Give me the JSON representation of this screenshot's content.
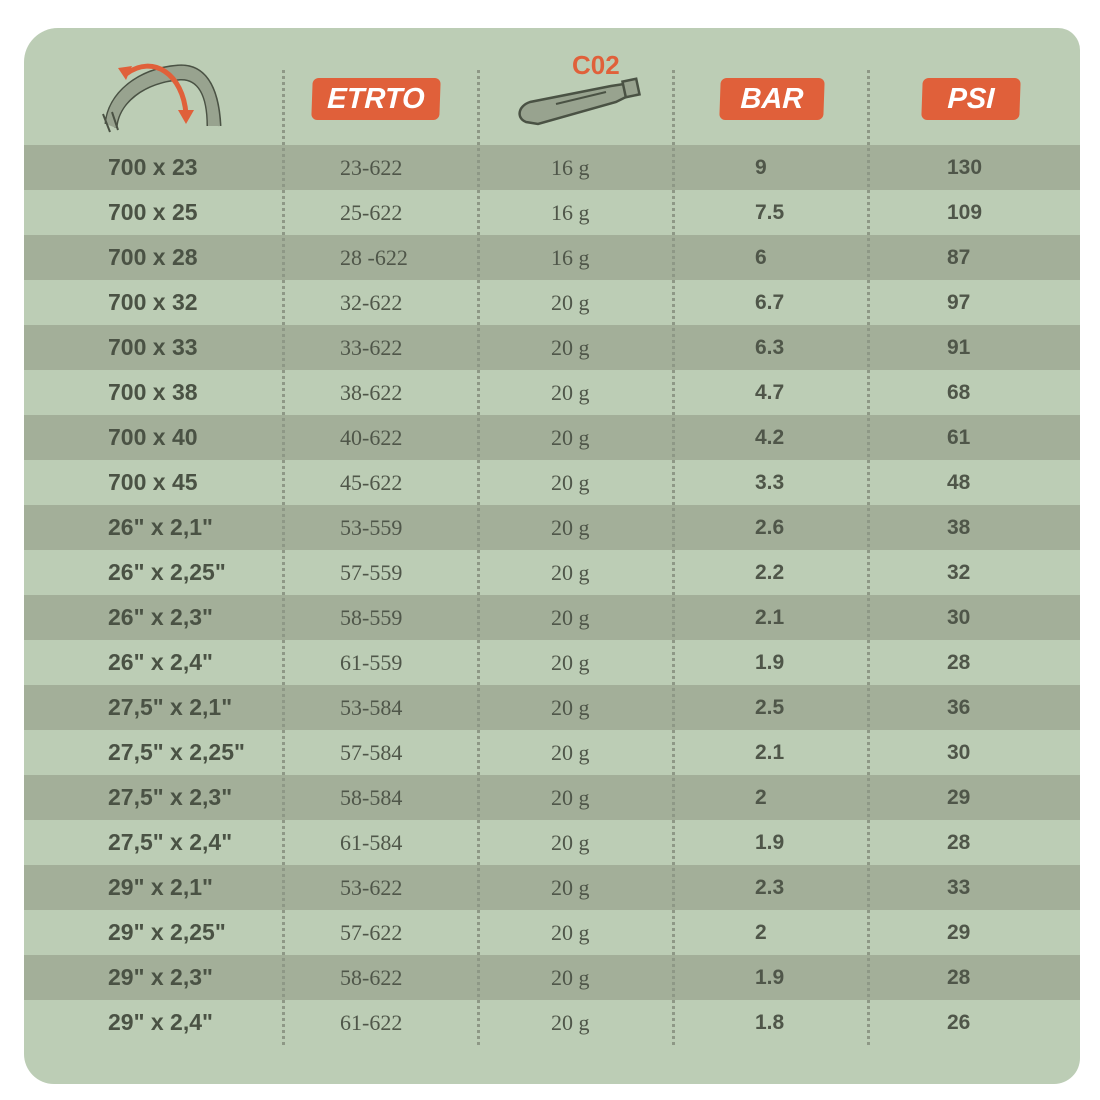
{
  "header": {
    "tyre_icon": "tyre-with-arrows-icon",
    "etrto": "ETRTO",
    "co2_label": "C02",
    "co2_icon": "co2-cartridge-icon",
    "bar": "BAR",
    "psi": "PSI"
  },
  "colors": {
    "background": "#bccdb5",
    "stripe": "#a3af99",
    "accent": "#e0603a",
    "text": "#4a5244"
  },
  "rows": [
    {
      "size": "700 x 23",
      "etrto": "23-622",
      "co2": "16 g",
      "bar": "9",
      "psi": "130"
    },
    {
      "size": "700 x 25",
      "etrto": "25-622",
      "co2": "16 g",
      "bar": "7.5",
      "psi": "109"
    },
    {
      "size": "700 x 28",
      "etrto": "28 -622",
      "co2": "16 g",
      "bar": "6",
      "psi": "87"
    },
    {
      "size": "700 x 32",
      "etrto": "32-622",
      "co2": "20 g",
      "bar": "6.7",
      "psi": "97"
    },
    {
      "size": "700 x 33",
      "etrto": "33-622",
      "co2": "20 g",
      "bar": "6.3",
      "psi": "91"
    },
    {
      "size": "700 x 38",
      "etrto": "38-622",
      "co2": "20 g",
      "bar": "4.7",
      "psi": "68"
    },
    {
      "size": "700 x 40",
      "etrto": "40-622",
      "co2": "20 g",
      "bar": "4.2",
      "psi": "61"
    },
    {
      "size": "700 x 45",
      "etrto": "45-622",
      "co2": "20 g",
      "bar": "3.3",
      "psi": "48"
    },
    {
      "size": "26\" x 2,1\"",
      "etrto": "53-559",
      "co2": "20 g",
      "bar": "2.6",
      "psi": "38"
    },
    {
      "size": "26\" x 2,25\"",
      "etrto": "57-559",
      "co2": "20 g",
      "bar": "2.2",
      "psi": "32"
    },
    {
      "size": "26\" x 2,3\"",
      "etrto": "58-559",
      "co2": "20 g",
      "bar": "2.1",
      "psi": "30"
    },
    {
      "size": "26\" x 2,4\"",
      "etrto": "61-559",
      "co2": "20 g",
      "bar": "1.9",
      "psi": "28"
    },
    {
      "size": "27,5\" x 2,1\"",
      "etrto": "53-584",
      "co2": "20 g",
      "bar": "2.5",
      "psi": "36"
    },
    {
      "size": "27,5\" x 2,25\"",
      "etrto": "57-584",
      "co2": "20 g",
      "bar": "2.1",
      "psi": "30"
    },
    {
      "size": "27,5\" x 2,3\"",
      "etrto": "58-584",
      "co2": "20 g",
      "bar": "2",
      "psi": "29"
    },
    {
      "size": "27,5\" x 2,4\"",
      "etrto": "61-584",
      "co2": "20 g",
      "bar": "1.9",
      "psi": "28"
    },
    {
      "size": "29\" x 2,1\"",
      "etrto": "53-622",
      "co2": "20 g",
      "bar": "2.3",
      "psi": "33"
    },
    {
      "size": "29\" x 2,25\"",
      "etrto": "57-622",
      "co2": "20 g",
      "bar": "2",
      "psi": "29"
    },
    {
      "size": "29\" x 2,3\"",
      "etrto": "58-622",
      "co2": "20 g",
      "bar": "1.9",
      "psi": "28"
    },
    {
      "size": "29\" x 2,4\"",
      "etrto": "61-622",
      "co2": "20 g",
      "bar": "1.8",
      "psi": "26"
    }
  ]
}
